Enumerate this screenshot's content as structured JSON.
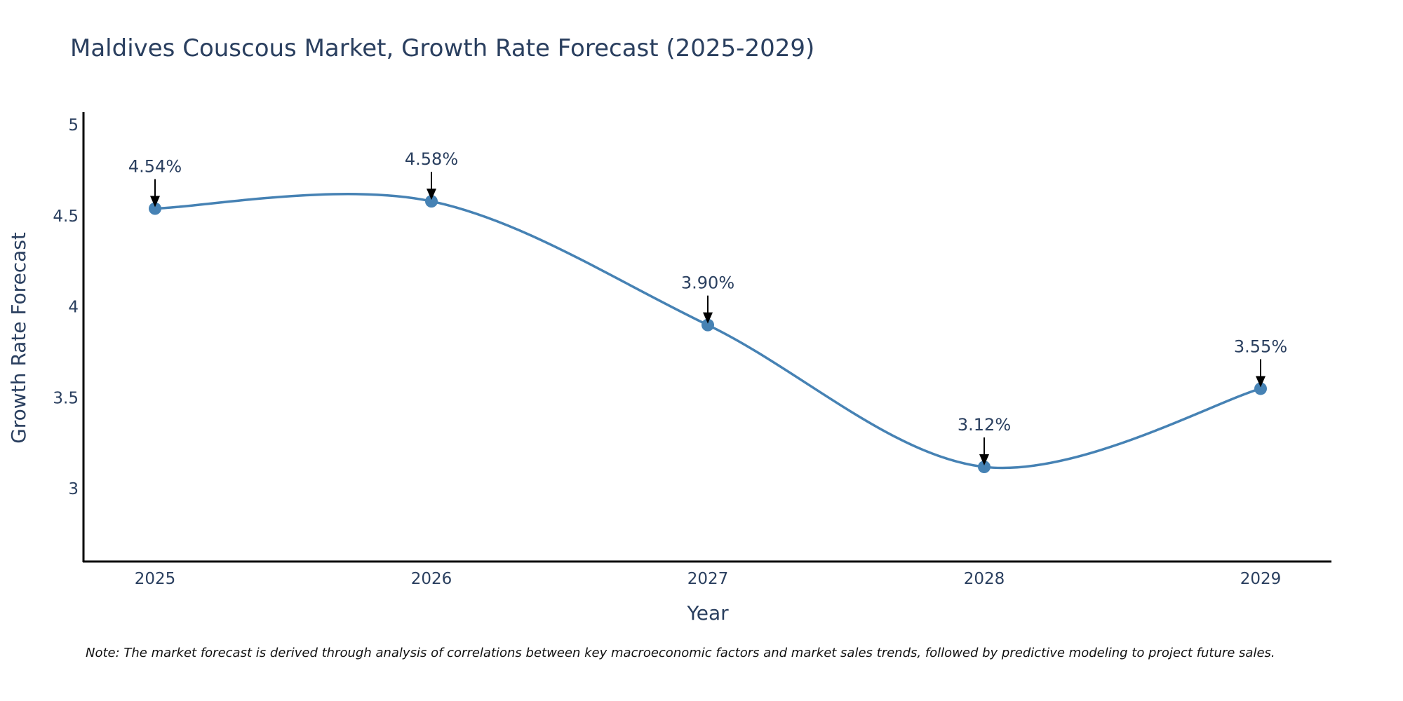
{
  "chart_data": {
    "type": "line",
    "title": "Maldives Couscous Market, Growth Rate Forecast (2025-2029)",
    "xlabel": "Year",
    "ylabel": "Growth Rate Forecast",
    "categories": [
      "2025",
      "2026",
      "2027",
      "2028",
      "2029"
    ],
    "series": [
      {
        "name": "Growth Rate Forecast",
        "values": [
          4.54,
          4.58,
          3.9,
          3.12,
          3.55
        ],
        "labels": [
          "4.54%",
          "4.58%",
          "3.90%",
          "3.12%",
          "3.55%"
        ]
      }
    ],
    "ylim": [
      2.6,
      5.07
    ],
    "yticks": [
      3,
      3.5,
      4,
      4.5,
      5
    ],
    "ytick_labels": [
      "3",
      "3.5",
      "4",
      "4.5",
      "5"
    ],
    "grid": false,
    "colors": {
      "line": "#4682b4",
      "marker": "#4682b4",
      "arrow": "#000000",
      "axis": "#000000",
      "text": "#2a3f5f"
    },
    "note": "Note: The market forecast is derived through analysis of correlations between key macroeconomic factors and market sales trends, followed by predictive modeling to project future sales."
  }
}
